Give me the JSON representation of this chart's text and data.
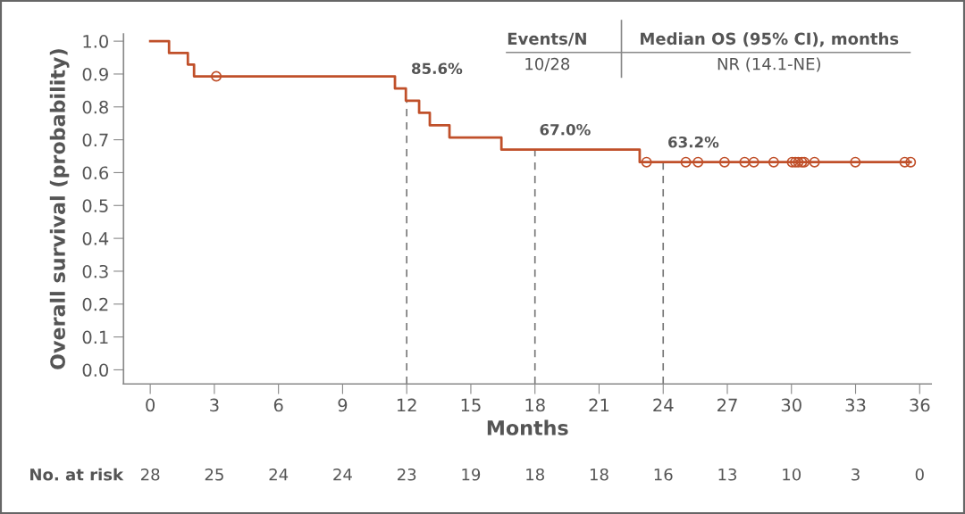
{
  "chart_data": {
    "type": "step",
    "xlabel": "Months",
    "ylabel": "Overall survival (probability)",
    "xlim": [
      -1.25,
      36.54
    ],
    "ylim": [
      -0.043,
      1.022
    ],
    "xticks": [
      0,
      3,
      6,
      9,
      12,
      15,
      18,
      21,
      24,
      27,
      30,
      33,
      36
    ],
    "yticks": [
      {
        "value": 0,
        "label": "0.0"
      },
      {
        "value": 0.1,
        "label": "0.1"
      },
      {
        "value": 0.2,
        "label": "0.2"
      },
      {
        "value": 0.3,
        "label": "0.3"
      },
      {
        "value": 0.4,
        "label": "0.4"
      },
      {
        "value": 0.5,
        "label": "0.5"
      },
      {
        "value": 0.6,
        "label": "0.6"
      },
      {
        "value": 0.7,
        "label": "0.7"
      },
      {
        "value": 0.8,
        "label": "0.8"
      },
      {
        "value": 0.9,
        "label": "0.9"
      },
      {
        "value": 1.0,
        "label": "1.0"
      }
    ],
    "grid": false,
    "series": [
      {
        "color": "#c0502a",
        "marker": "none",
        "line_style": "solid",
        "x": [
          0,
          0.88,
          1.76,
          2.05,
          11.45,
          11.96,
          12.58,
          13.08,
          14.0,
          16.43,
          22.9,
          35.58
        ],
        "values": [
          1.0,
          0.964,
          0.929,
          0.893,
          0.856,
          0.819,
          0.782,
          0.744,
          0.707,
          0.67,
          0.632,
          0.632
        ]
      },
      {
        "type": "scatter",
        "color": "#c0502a",
        "marker": "circle",
        "x": [
          3.09,
          23.22,
          25.06,
          25.63,
          26.87,
          27.81,
          28.24,
          29.17,
          30.03,
          30.18,
          30.32,
          30.49,
          30.6,
          31.08,
          32.99,
          35.3,
          35.58
        ],
        "values": [
          0.893,
          0.632,
          0.632,
          0.632,
          0.632,
          0.632,
          0.632,
          0.632,
          0.632,
          0.632,
          0.632,
          0.632,
          0.632,
          0.632,
          0.632,
          0.632,
          0.632
        ]
      }
    ],
    "ref_lines": [
      {
        "axis": "x",
        "value": 12,
        "color": "#777777",
        "line_style": "dashed"
      },
      {
        "axis": "x",
        "value": 18,
        "color": "#777777",
        "line_style": "dashed"
      },
      {
        "axis": "x",
        "value": 24,
        "color": "#777777",
        "line_style": "dashed"
      }
    ],
    "annotations": [
      {
        "text": "85.6%",
        "x": 12,
        "y": 0.856
      },
      {
        "text": "67.0%",
        "x": 18,
        "y": 0.67
      },
      {
        "text": "63.2%",
        "x": 24,
        "y": 0.632
      },
      "Events/N",
      "Median OS (95% CI), months",
      "10/28",
      "NR (14.1-NE)",
      "No. at risk",
      "28",
      "25",
      "24",
      "24",
      "23",
      "19",
      "18",
      "18",
      "16",
      "13",
      "10",
      "3",
      "0"
    ]
  }
}
